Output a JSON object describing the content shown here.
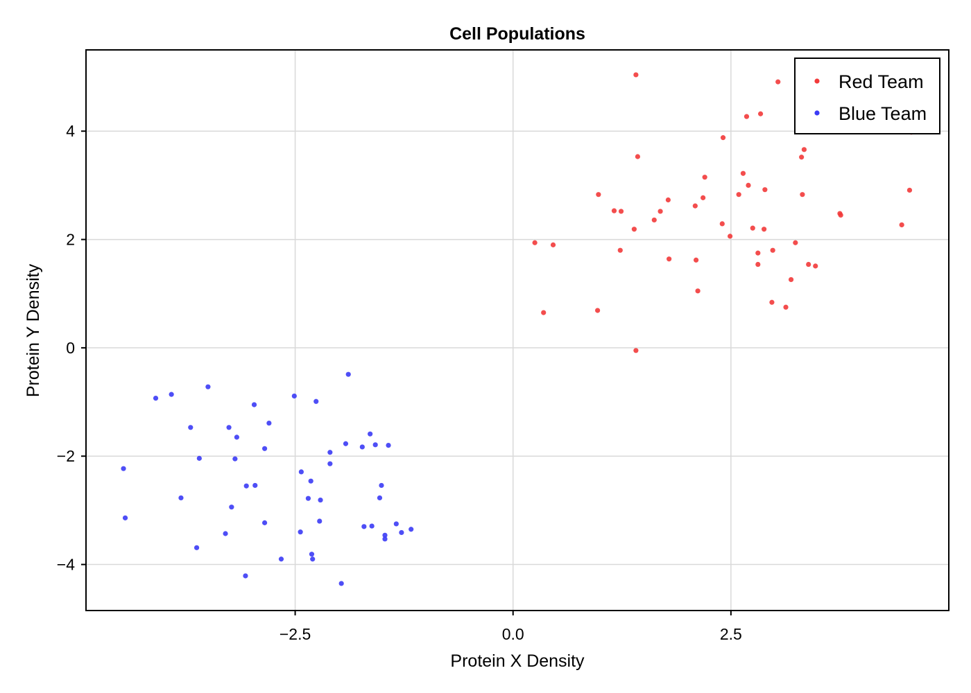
{
  "chart_data": {
    "type": "scatter",
    "title": "Cell Populations",
    "xlabel": "Protein X Density",
    "ylabel": "Protein Y Density",
    "xlim": [
      -4.9,
      5.0
    ],
    "ylim": [
      -4.85,
      5.5
    ],
    "x_ticks": [
      -2.5,
      0.0,
      2.5
    ],
    "x_tick_labels": [
      "−2.5",
      "0.0",
      "2.5"
    ],
    "y_ticks": [
      -4,
      -2,
      0,
      2,
      4
    ],
    "y_tick_labels": [
      "−4",
      "−2",
      "0",
      "2",
      "4"
    ],
    "grid": true,
    "legend_position": "top-right",
    "series": [
      {
        "name": "Red Team",
        "color": "#f23a3a",
        "points": [
          [
            1.41,
            5.04
          ],
          [
            3.04,
            4.91
          ],
          [
            2.68,
            4.27
          ],
          [
            2.84,
            4.32
          ],
          [
            2.41,
            3.88
          ],
          [
            4.57,
            3.98
          ],
          [
            3.34,
            3.66
          ],
          [
            3.31,
            3.52
          ],
          [
            1.43,
            3.53
          ],
          [
            2.64,
            3.22
          ],
          [
            2.2,
            3.15
          ],
          [
            2.7,
            3.0
          ],
          [
            2.89,
            2.92
          ],
          [
            4.55,
            2.91
          ],
          [
            0.98,
            2.83
          ],
          [
            2.59,
            2.83
          ],
          [
            3.32,
            2.83
          ],
          [
            1.78,
            2.73
          ],
          [
            2.18,
            2.77
          ],
          [
            2.09,
            2.62
          ],
          [
            1.16,
            2.53
          ],
          [
            1.24,
            2.52
          ],
          [
            1.69,
            2.52
          ],
          [
            1.62,
            2.36
          ],
          [
            3.75,
            2.48
          ],
          [
            3.76,
            2.45
          ],
          [
            2.4,
            2.29
          ],
          [
            4.46,
            2.27
          ],
          [
            1.39,
            2.19
          ],
          [
            2.75,
            2.21
          ],
          [
            2.88,
            2.19
          ],
          [
            2.49,
            2.06
          ],
          [
            0.25,
            1.94
          ],
          [
            0.46,
            1.9
          ],
          [
            3.24,
            1.94
          ],
          [
            1.23,
            1.8
          ],
          [
            2.98,
            1.8
          ],
          [
            2.81,
            1.75
          ],
          [
            1.79,
            1.64
          ],
          [
            2.1,
            1.62
          ],
          [
            2.81,
            1.54
          ],
          [
            3.39,
            1.54
          ],
          [
            3.47,
            1.51
          ],
          [
            3.19,
            1.26
          ],
          [
            2.12,
            1.05
          ],
          [
            2.97,
            0.84
          ],
          [
            3.13,
            0.75
          ],
          [
            0.35,
            0.65
          ],
          [
            0.97,
            0.69
          ],
          [
            1.41,
            -0.05
          ]
        ]
      },
      {
        "name": "Blue Team",
        "color": "#3b3bf5",
        "points": [
          [
            -1.89,
            -0.49
          ],
          [
            -3.5,
            -0.72
          ],
          [
            -3.92,
            -0.86
          ],
          [
            -4.1,
            -0.93
          ],
          [
            -2.51,
            -0.89
          ],
          [
            -2.26,
            -0.99
          ],
          [
            -2.97,
            -1.05
          ],
          [
            -2.8,
            -1.39
          ],
          [
            -3.7,
            -1.47
          ],
          [
            -3.26,
            -1.47
          ],
          [
            -3.17,
            -1.65
          ],
          [
            -1.64,
            -1.59
          ],
          [
            -1.92,
            -1.77
          ],
          [
            -1.58,
            -1.79
          ],
          [
            -1.43,
            -1.8
          ],
          [
            -1.73,
            -1.83
          ],
          [
            -2.85,
            -1.86
          ],
          [
            -2.1,
            -1.93
          ],
          [
            -3.6,
            -2.04
          ],
          [
            -3.19,
            -2.05
          ],
          [
            -2.1,
            -2.14
          ],
          [
            -4.47,
            -2.23
          ],
          [
            -2.43,
            -2.29
          ],
          [
            -2.32,
            -2.46
          ],
          [
            -3.06,
            -2.55
          ],
          [
            -2.96,
            -2.54
          ],
          [
            -1.51,
            -2.54
          ],
          [
            -3.81,
            -2.77
          ],
          [
            -2.35,
            -2.78
          ],
          [
            -2.21,
            -2.81
          ],
          [
            -1.53,
            -2.77
          ],
          [
            -3.23,
            -2.94
          ],
          [
            -4.45,
            -3.14
          ],
          [
            -2.22,
            -3.2
          ],
          [
            -2.85,
            -3.23
          ],
          [
            -1.34,
            -3.25
          ],
          [
            -1.71,
            -3.3
          ],
          [
            -1.62,
            -3.29
          ],
          [
            -1.17,
            -3.35
          ],
          [
            -2.44,
            -3.4
          ],
          [
            -1.28,
            -3.41
          ],
          [
            -3.3,
            -3.43
          ],
          [
            -1.47,
            -3.46
          ],
          [
            -1.47,
            -3.53
          ],
          [
            -3.63,
            -3.69
          ],
          [
            -2.31,
            -3.81
          ],
          [
            -2.3,
            -3.9
          ],
          [
            -2.66,
            -3.9
          ],
          [
            -3.07,
            -4.21
          ],
          [
            -1.97,
            -4.35
          ]
        ]
      }
    ]
  }
}
